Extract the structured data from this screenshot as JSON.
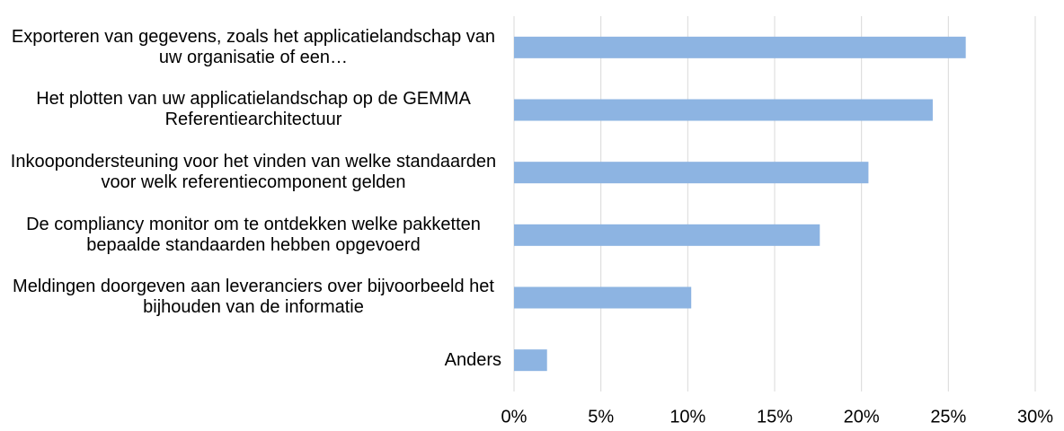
{
  "chart_data": {
    "type": "barh",
    "categories": [
      "Exporteren van gegevens, zoals het applicatielandschap van uw organisatie of een…",
      "Het plotten van uw applicatielandschap op de GEMMA Referentiearchitectuur",
      "Inkoopondersteuning voor het vinden van welke standaarden voor welk referentiecomponent gelden",
      "De compliancy monitor om te ontdekken welke pakketten bepaalde standaarden hebben opgevoerd",
      "Meldingen doorgeven aan leveranciers over bijvoorbeeld het bijhouden van de informatie",
      "Anders"
    ],
    "values": [
      26.0,
      24.1,
      20.4,
      17.6,
      10.2,
      1.9
    ],
    "color": "#8db4e2",
    "xlim": [
      0,
      30
    ],
    "xticks": [
      {
        "value": 0,
        "label": "0%"
      },
      {
        "value": 5,
        "label": "5%"
      },
      {
        "value": 10,
        "label": "10%"
      },
      {
        "value": 15,
        "label": "15%"
      },
      {
        "value": 20,
        "label": "20%"
      },
      {
        "value": 25,
        "label": "25%"
      },
      {
        "value": 30,
        "label": "30%"
      }
    ],
    "grid": true
  }
}
